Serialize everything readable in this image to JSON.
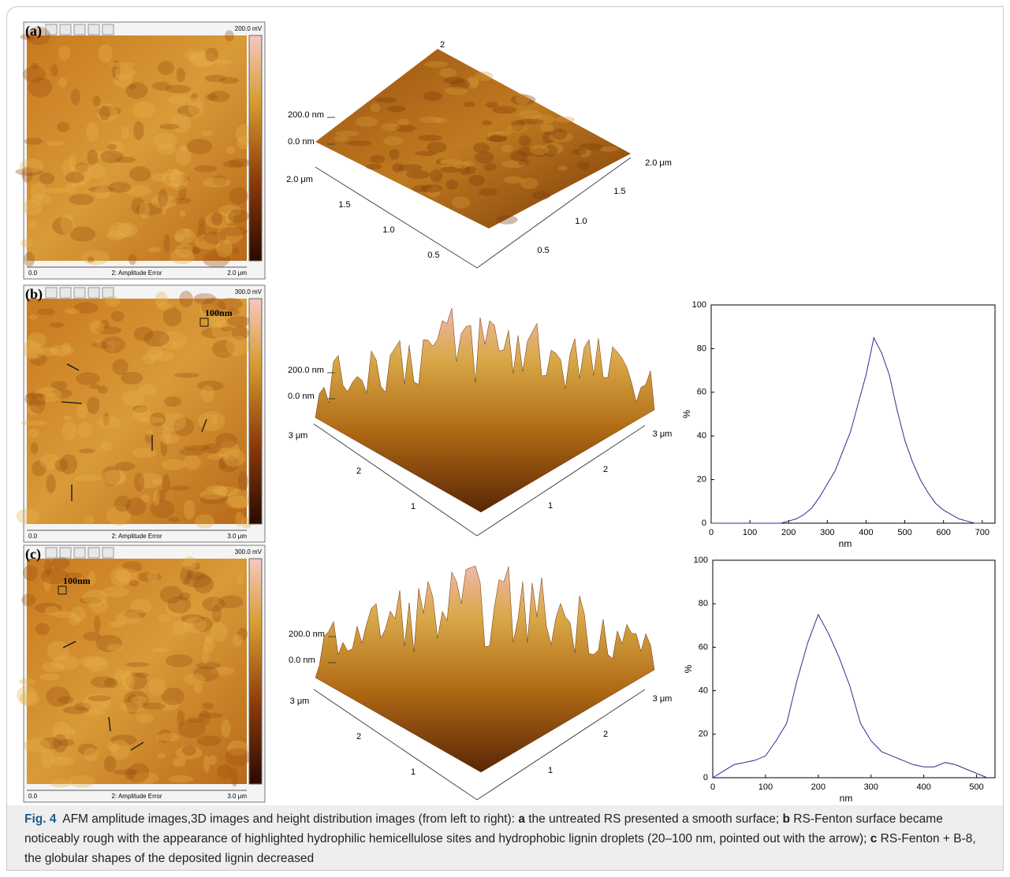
{
  "panels": [
    {
      "label": "(a)",
      "amplitude": {
        "scale": "200.0 mV",
        "x_start": "0.0",
        "channel": "2: Amplitude Error",
        "x_end": "2.0 μm"
      },
      "surface": {
        "z_labels": [
          "200.0 nm",
          "0.0 nm"
        ],
        "top_label": "2",
        "left_ticks": [
          "2.0 μm",
          "1.5",
          "1.0",
          "0.5"
        ],
        "right_ticks": [
          "2.0 μm",
          "1.5",
          "1.0",
          "0.5"
        ]
      }
    },
    {
      "label": "(b)",
      "amplitude": {
        "scale": "300.0 mV",
        "x_start": "0.0",
        "channel": "2: Amplitude Error",
        "x_end": "3.0 μm",
        "marker": "100nm"
      },
      "surface": {
        "z_labels": [
          "200.0 nm",
          "0.0 nm"
        ],
        "left_ticks": [
          "3 μm",
          "2",
          "1"
        ],
        "right_ticks": [
          "3 μm",
          "2",
          "1"
        ]
      }
    },
    {
      "label": "(c)",
      "amplitude": {
        "scale": "300.0 mV",
        "x_start": "0.0",
        "channel": "2: Amplitude Error",
        "x_end": "3.0 μm",
        "marker": "100nm"
      },
      "surface": {
        "z_labels": [
          "200.0 nm",
          "0.0 nm"
        ],
        "left_ticks": [
          "3 μm",
          "2",
          "1"
        ],
        "right_ticks": [
          "3 μm",
          "2",
          "1"
        ]
      }
    }
  ],
  "chart_data": [
    {
      "type": "line",
      "xlabel": "nm",
      "ylabel": "%",
      "x": [
        0,
        20,
        40,
        60,
        80,
        100,
        120,
        140,
        160,
        180,
        200,
        220,
        240,
        260,
        280,
        300,
        320,
        340,
        360,
        380,
        400,
        420,
        440,
        460,
        480,
        500,
        520,
        540,
        560,
        580,
        600,
        620,
        640,
        660,
        680,
        700
      ],
      "series": [
        {
          "color": "#2b2f8f",
          "values": [
            0,
            0,
            0,
            0,
            0,
            0,
            0,
            0,
            0,
            0,
            1,
            2,
            4,
            7,
            12,
            18,
            24,
            33,
            42,
            55,
            68,
            85,
            78,
            68,
            52,
            38,
            28,
            20,
            14,
            9,
            6,
            4,
            2,
            1,
            0,
            0
          ]
        }
      ],
      "xlim": [
        0,
        733
      ],
      "ylim": [
        0,
        100
      ],
      "xticks": [
        0,
        100,
        200,
        300,
        400,
        500,
        600,
        700
      ],
      "yticks": [
        0,
        20,
        40,
        60,
        80,
        100
      ]
    },
    {
      "type": "line",
      "xlabel": "nm",
      "ylabel": "%",
      "x": [
        0,
        20,
        40,
        60,
        80,
        100,
        120,
        140,
        160,
        180,
        200,
        220,
        240,
        260,
        280,
        300,
        320,
        340,
        360,
        380,
        400,
        420,
        440,
        460,
        480,
        500,
        520
      ],
      "series": [
        {
          "color": "#2b2f8f",
          "values": [
            0,
            3,
            6,
            7,
            8,
            10,
            17,
            25,
            45,
            62,
            75,
            66,
            55,
            42,
            25,
            17,
            12,
            10,
            8,
            6,
            5,
            5,
            7,
            6,
            4,
            2,
            0
          ]
        }
      ],
      "xlim": [
        0,
        535
      ],
      "ylim": [
        0,
        100
      ],
      "xticks": [
        0,
        100,
        200,
        300,
        400,
        500
      ],
      "yticks": [
        0,
        20,
        40,
        60,
        80,
        100
      ]
    }
  ],
  "caption": [
    {
      "text": "Fig. 4",
      "bold": true,
      "color": "#1f5d8c"
    },
    {
      "text": "  AFM amplitude images,3D images and height distribution images (from left to right): ",
      "bold": false
    },
    {
      "text": "a",
      "bold": true
    },
    {
      "text": " the untreated RS presented a smooth surface; ",
      "bold": false
    },
    {
      "text": "b",
      "bold": true
    },
    {
      "text": " RS-Fenton surface became noticeably rough with the appearance of highlighted hydrophilic hemicellulose sites and hydrophobic lignin droplets (20–100 nm, pointed out with the arrow); ",
      "bold": false
    },
    {
      "text": "c",
      "bold": true
    },
    {
      "text": " RS-Fenton + B-8, the globular shapes of the deposited lignin decreased",
      "bold": false
    }
  ]
}
